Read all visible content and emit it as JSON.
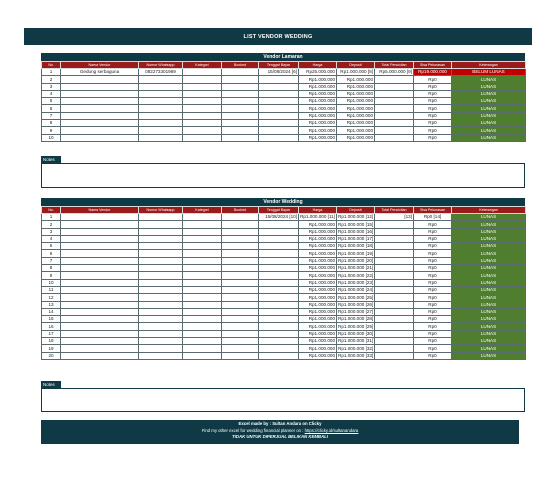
{
  "banner": "LIST VENDOR WEDDING",
  "headers": [
    "No.",
    "Nama Vendor",
    "Nomor Whatsapp",
    "Kategori",
    "Booked",
    "Tenggat Bayar",
    "Harga",
    "Deposit",
    "Total Pencicilan",
    "Sisa Pelunasan",
    "Keterangan"
  ],
  "lamaran": {
    "title": "Vendor Lamaran",
    "rows": [
      {
        "no": "1",
        "nama": "Gedung serbaguna",
        "wa": "082273301969",
        "kategori": "",
        "booked": "",
        "tenggat": "15/08/2024 [6]",
        "harga": "Rp25.000.000",
        "deposit": "Rp1.000.000 [8]",
        "total": "Rp5.000.000 [9]",
        "sisa": "Rp19.000.000",
        "ket": "BELUM LUNAS"
      },
      {
        "no": "2",
        "nama": "",
        "wa": "",
        "kategori": "",
        "booked": "",
        "tenggat": "",
        "harga": "Rp1.000.000",
        "deposit": "Rp1.000.000",
        "total": "",
        "sisa": "Rp0",
        "ket": "LUNAS"
      },
      {
        "no": "3",
        "nama": "",
        "wa": "",
        "kategori": "",
        "booked": "",
        "tenggat": "",
        "harga": "Rp1.000.000",
        "deposit": "Rp1.000.000",
        "total": "",
        "sisa": "Rp0",
        "ket": "LUNAS"
      },
      {
        "no": "4",
        "nama": "",
        "wa": "",
        "kategori": "",
        "booked": "",
        "tenggat": "",
        "harga": "Rp1.000.000",
        "deposit": "Rp1.000.000",
        "total": "",
        "sisa": "Rp0",
        "ket": "LUNAS"
      },
      {
        "no": "5",
        "nama": "",
        "wa": "",
        "kategori": "",
        "booked": "",
        "tenggat": "",
        "harga": "Rp1.000.000",
        "deposit": "Rp1.000.000",
        "total": "",
        "sisa": "Rp0",
        "ket": "LUNAS"
      },
      {
        "no": "6",
        "nama": "",
        "wa": "",
        "kategori": "",
        "booked": "",
        "tenggat": "",
        "harga": "Rp1.000.000",
        "deposit": "Rp1.000.000",
        "total": "",
        "sisa": "Rp0",
        "ket": "LUNAS"
      },
      {
        "no": "7",
        "nama": "",
        "wa": "",
        "kategori": "",
        "booked": "",
        "tenggat": "",
        "harga": "Rp1.000.000",
        "deposit": "Rp1.000.000",
        "total": "",
        "sisa": "Rp0",
        "ket": "LUNAS"
      },
      {
        "no": "8",
        "nama": "",
        "wa": "",
        "kategori": "",
        "booked": "",
        "tenggat": "",
        "harga": "Rp1.000.000",
        "deposit": "Rp1.000.000",
        "total": "",
        "sisa": "Rp0",
        "ket": "LUNAS"
      },
      {
        "no": "9",
        "nama": "",
        "wa": "",
        "kategori": "",
        "booked": "",
        "tenggat": "",
        "harga": "Rp1.000.000",
        "deposit": "Rp1.000.000",
        "total": "",
        "sisa": "Rp0",
        "ket": "LUNAS"
      },
      {
        "no": "10",
        "nama": "",
        "wa": "",
        "kategori": "",
        "booked": "",
        "tenggat": "",
        "harga": "Rp1.000.000",
        "deposit": "Rp1.000.000",
        "total": "",
        "sisa": "Rp0",
        "ket": "LUNAS"
      }
    ]
  },
  "notes_label": "Notes",
  "wedding": {
    "title": "Vendor Wedding",
    "rows": [
      {
        "no": "1",
        "nama": "",
        "wa": "",
        "kategori": "",
        "booked": "",
        "tenggat": "15/08/2024 [10]",
        "harga": "Rp1.000.000 [11]",
        "deposit": "Rp1.000.000 [12]",
        "total": "[13]",
        "sisa": "Rp0 [14]",
        "ket": "LUNAS"
      },
      {
        "no": "2",
        "nama": "",
        "wa": "",
        "kategori": "",
        "booked": "",
        "tenggat": "",
        "harga": "Rp1.000.000",
        "deposit": "Rp1.000.000 [15]",
        "total": "",
        "sisa": "Rp0",
        "ket": "LUNAS"
      },
      {
        "no": "3",
        "nama": "",
        "wa": "",
        "kategori": "",
        "booked": "",
        "tenggat": "",
        "harga": "Rp1.000.000",
        "deposit": "Rp1.000.000 [16]",
        "total": "",
        "sisa": "Rp0",
        "ket": "LUNAS"
      },
      {
        "no": "4",
        "nama": "",
        "wa": "",
        "kategori": "",
        "booked": "",
        "tenggat": "",
        "harga": "Rp1.000.000",
        "deposit": "Rp1.000.000 [17]",
        "total": "",
        "sisa": "Rp0",
        "ket": "LUNAS"
      },
      {
        "no": "5",
        "nama": "",
        "wa": "",
        "kategori": "",
        "booked": "",
        "tenggat": "",
        "harga": "Rp1.000.000",
        "deposit": "Rp1.000.000 [18]",
        "total": "",
        "sisa": "Rp0",
        "ket": "LUNAS"
      },
      {
        "no": "6",
        "nama": "",
        "wa": "",
        "kategori": "",
        "booked": "",
        "tenggat": "",
        "harga": "Rp1.000.000",
        "deposit": "Rp1.000.000 [19]",
        "total": "",
        "sisa": "Rp0",
        "ket": "LUNAS"
      },
      {
        "no": "7",
        "nama": "",
        "wa": "",
        "kategori": "",
        "booked": "",
        "tenggat": "",
        "harga": "Rp1.000.000",
        "deposit": "Rp1.000.000 [20]",
        "total": "",
        "sisa": "Rp0",
        "ket": "LUNAS"
      },
      {
        "no": "8",
        "nama": "",
        "wa": "",
        "kategori": "",
        "booked": "",
        "tenggat": "",
        "harga": "Rp1.000.000",
        "deposit": "Rp1.000.000 [21]",
        "total": "",
        "sisa": "Rp0",
        "ket": "LUNAS"
      },
      {
        "no": "9",
        "nama": "",
        "wa": "",
        "kategori": "",
        "booked": "",
        "tenggat": "",
        "harga": "Rp1.000.000",
        "deposit": "Rp1.000.000 [22]",
        "total": "",
        "sisa": "Rp0",
        "ket": "LUNAS"
      },
      {
        "no": "10",
        "nama": "",
        "wa": "",
        "kategori": "",
        "booked": "",
        "tenggat": "",
        "harga": "Rp1.000.000",
        "deposit": "Rp1.000.000 [23]",
        "total": "",
        "sisa": "Rp0",
        "ket": "LUNAS"
      },
      {
        "no": "11",
        "nama": "",
        "wa": "",
        "kategori": "",
        "booked": "",
        "tenggat": "",
        "harga": "Rp1.000.000",
        "deposit": "Rp1.000.000 [24]",
        "total": "",
        "sisa": "Rp0",
        "ket": "LUNAS"
      },
      {
        "no": "12",
        "nama": "",
        "wa": "",
        "kategori": "",
        "booked": "",
        "tenggat": "",
        "harga": "Rp1.000.000",
        "deposit": "Rp1.000.000 [25]",
        "total": "",
        "sisa": "Rp0",
        "ket": "LUNAS"
      },
      {
        "no": "13",
        "nama": "",
        "wa": "",
        "kategori": "",
        "booked": "",
        "tenggat": "",
        "harga": "Rp1.000.000",
        "deposit": "Rp1.000.000 [26]",
        "total": "",
        "sisa": "Rp0",
        "ket": "LUNAS"
      },
      {
        "no": "14",
        "nama": "",
        "wa": "",
        "kategori": "",
        "booked": "",
        "tenggat": "",
        "harga": "Rp1.000.000",
        "deposit": "Rp1.000.000 [27]",
        "total": "",
        "sisa": "Rp0",
        "ket": "LUNAS"
      },
      {
        "no": "15",
        "nama": "",
        "wa": "",
        "kategori": "",
        "booked": "",
        "tenggat": "",
        "harga": "Rp1.000.000",
        "deposit": "Rp1.000.000 [28]",
        "total": "",
        "sisa": "Rp0",
        "ket": "LUNAS"
      },
      {
        "no": "16",
        "nama": "",
        "wa": "",
        "kategori": "",
        "booked": "",
        "tenggat": "",
        "harga": "Rp1.000.000",
        "deposit": "Rp1.000.000 [29]",
        "total": "",
        "sisa": "Rp0",
        "ket": "LUNAS"
      },
      {
        "no": "17",
        "nama": "",
        "wa": "",
        "kategori": "",
        "booked": "",
        "tenggat": "",
        "harga": "Rp1.000.000",
        "deposit": "Rp1.000.000 [30]",
        "total": "",
        "sisa": "Rp0",
        "ket": "LUNAS"
      },
      {
        "no": "18",
        "nama": "",
        "wa": "",
        "kategori": "",
        "booked": "",
        "tenggat": "",
        "harga": "Rp1.000.000",
        "deposit": "Rp1.000.000 [31]",
        "total": "",
        "sisa": "Rp0",
        "ket": "LUNAS"
      },
      {
        "no": "19",
        "nama": "",
        "wa": "",
        "kategori": "",
        "booked": "",
        "tenggat": "",
        "harga": "Rp1.000.000",
        "deposit": "Rp1.000.000 [32]",
        "total": "",
        "sisa": "Rp0",
        "ket": "LUNAS"
      },
      {
        "no": "20",
        "nama": "",
        "wa": "",
        "kategori": "",
        "booked": "",
        "tenggat": "",
        "harga": "Rp1.000.000",
        "deposit": "Rp1.000.000 [33]",
        "total": "",
        "sisa": "Rp0",
        "ket": "LUNAS"
      }
    ]
  },
  "footer": {
    "line1": "Excel made by : Sultan Andara on Clicky",
    "line2_text": "Find my other excel for wedding financial planner on : ",
    "line2_link": "https://clicky.id/sultanandara",
    "line3": "TIDAK UNTUK DIPERJUAL BELIKAN KEMBALI"
  },
  "colors": {
    "header_bg": "#0f3a45",
    "column_header": "#9b1b1b",
    "paid": "#4f7f2e",
    "unpaid": "#c00000"
  }
}
